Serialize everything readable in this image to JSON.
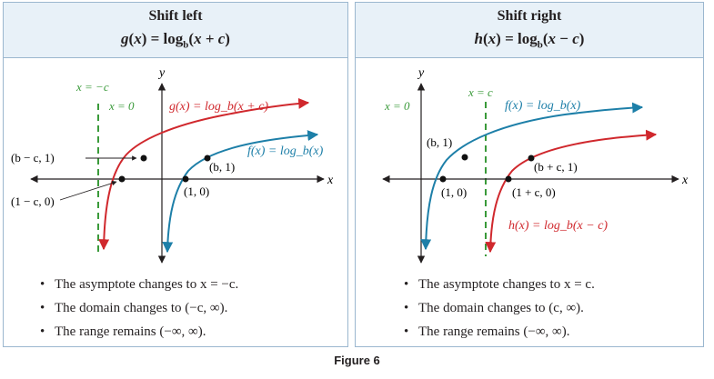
{
  "left": {
    "title": "Shift left",
    "equation": "g(x) = log_b(x + c)",
    "labels": {
      "asym_neg_c": "x = −c",
      "asym_zero": "x = 0",
      "y_axis": "y",
      "x_axis": "x",
      "g_curve": "g(x) = log_b(x + c)",
      "f_curve": "f(x) = log_b(x)",
      "point_b1": "(b, 1)",
      "point_10": "(1, 0)",
      "point_bc1": "(b − c, 1)",
      "point_1c0": "(1 − c, 0)"
    },
    "bullets": [
      "The asymptote changes to x = −c.",
      "The domain changes to (−c, ∞).",
      "The range remains (−∞, ∞)."
    ]
  },
  "right": {
    "title": "Shift right",
    "equation": "h(x) = log_b(x − c)",
    "labels": {
      "asym_c": "x = c",
      "asym_zero": "x = 0",
      "y_axis": "y",
      "x_axis": "x",
      "f_curve": "f(x) = log_b(x)",
      "h_curve": "h(x) = log_b(x − c)",
      "point_b1": "(b, 1)",
      "point_10": "(1, 0)",
      "point_bc1": "(b + c, 1)",
      "point_1c0": "(1 + c, 0)"
    },
    "bullets": [
      "The asymptote changes to x = c.",
      "The domain changes to (c, ∞).",
      "The range remains (−∞, ∞)."
    ]
  },
  "caption": "Figure 6",
  "colors": {
    "red": "#d0282d",
    "blue": "#1d7fa8",
    "green": "#3a9a3a",
    "axis": "#231f20",
    "header_bg": "#e8f1f8",
    "border": "#9bb7cf"
  }
}
